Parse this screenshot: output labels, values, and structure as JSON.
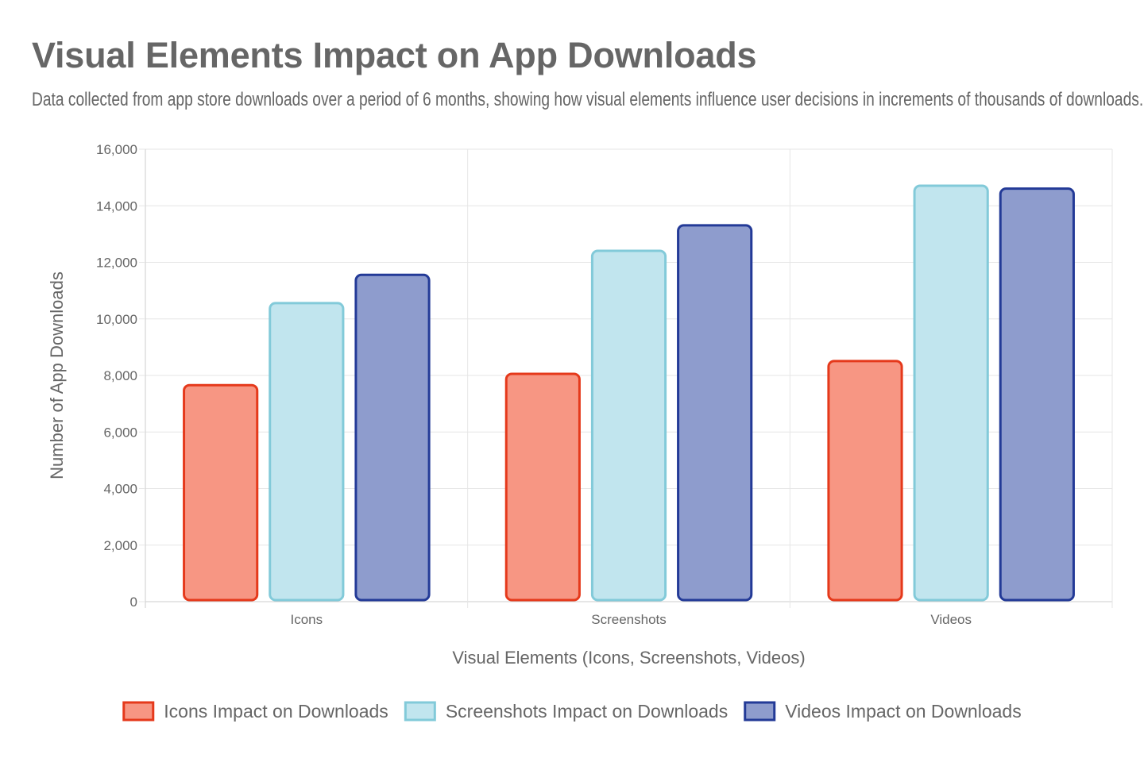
{
  "chart_data": {
    "type": "bar",
    "title": "Visual Elements Impact on App Downloads",
    "subtitle": "Data collected from app store downloads over a period of 6 months, showing how visual elements influence user decisions in increments of thousands of downloads.",
    "categories": [
      "Icons",
      "Screenshots",
      "Videos"
    ],
    "xlabel": "Visual Elements (Icons, Screenshots, Videos)",
    "ylabel": "Number of App Downloads",
    "ylim": [
      0,
      16000
    ],
    "yticks": [
      0,
      2000,
      4000,
      6000,
      8000,
      10000,
      12000,
      14000,
      16000
    ],
    "grid": true,
    "legend_position": "bottom",
    "series": [
      {
        "name": "Icons Impact on Downloads",
        "values": [
          7700,
          8100,
          8550
        ],
        "fill": "#f79683",
        "stroke": "#e5391b"
      },
      {
        "name": "Screenshots Impact on Downloads",
        "values": [
          10600,
          12450,
          14750
        ],
        "fill": "#c1e5ee",
        "stroke": "#82cad9"
      },
      {
        "name": "Videos Impact on Downloads",
        "values": [
          11600,
          13350,
          14650
        ],
        "fill": "#8e9ccd",
        "stroke": "#233a97"
      }
    ]
  }
}
